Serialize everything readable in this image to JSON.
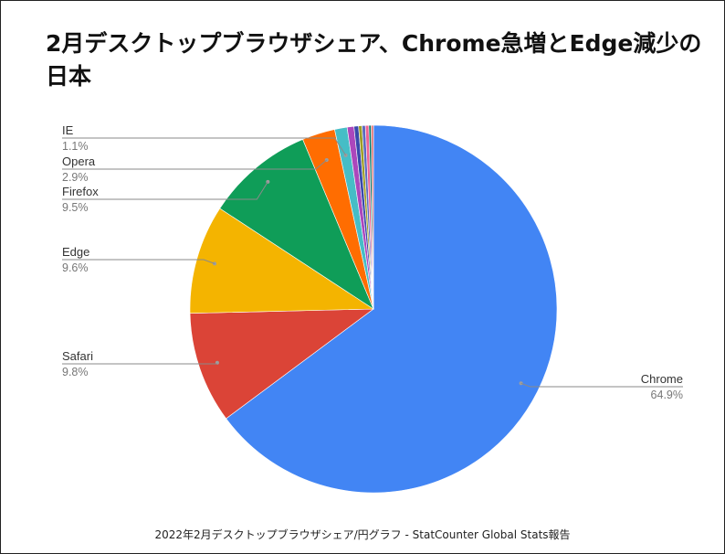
{
  "title": "2月デスクトップブラウザシェア、Chrome急増とEdge減少の日本",
  "caption": "2022年2月デスクトップブラウザシェア/円グラフ - StatCounter Global Stats報告",
  "chart_data": {
    "type": "pie",
    "title": "2月デスクトップブラウザシェア、Chrome急増とEdge減少の日本",
    "series": [
      {
        "name": "Chrome",
        "value": 64.9,
        "label": "64.9%",
        "color": "#4285f4"
      },
      {
        "name": "Safari",
        "value": 9.8,
        "label": "9.8%",
        "color": "#db4437"
      },
      {
        "name": "Edge",
        "value": 9.6,
        "label": "9.6%",
        "color": "#f4b400"
      },
      {
        "name": "Firefox",
        "value": 9.5,
        "label": "9.5%",
        "color": "#0f9d58"
      },
      {
        "name": "Opera",
        "value": 2.9,
        "label": "2.9%",
        "color": "#ff6d01"
      },
      {
        "name": "IE",
        "value": 1.1,
        "label": "1.1%",
        "color": "#46bdc6"
      },
      {
        "name": "",
        "value": 0.6,
        "label": "",
        "color": "#ab47bc"
      },
      {
        "name": "",
        "value": 0.4,
        "label": "",
        "color": "#3949ab"
      },
      {
        "name": "",
        "value": 0.3,
        "label": "",
        "color": "#9e9d24"
      },
      {
        "name": "",
        "value": 0.3,
        "label": "",
        "color": "#5c6bc0"
      },
      {
        "name": "",
        "value": 0.3,
        "label": "",
        "color": "#f06292"
      },
      {
        "name": "",
        "value": 0.2,
        "label": "",
        "color": "#00796b"
      },
      {
        "name": "",
        "value": 0.2,
        "label": "",
        "color": "#e57373"
      }
    ]
  }
}
